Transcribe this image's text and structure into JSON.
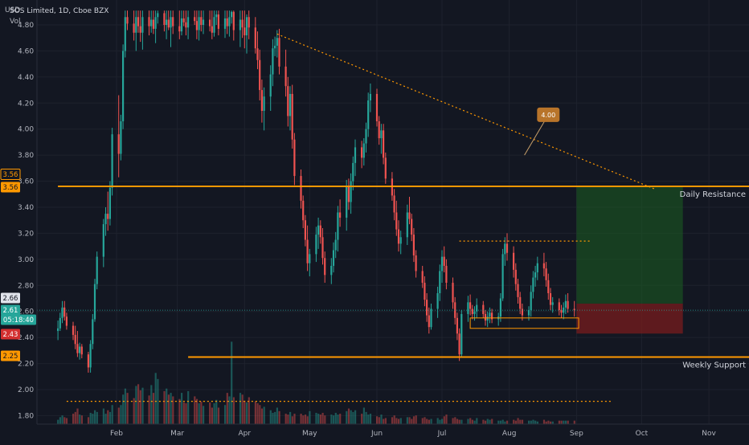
{
  "header": {
    "currency": "USD",
    "symbol_line": "SOS Limited, 1D, Cboe BZX",
    "volume_label": "Vol"
  },
  "colors": {
    "background": "#131722",
    "up": "#26a69a",
    "down": "#ef5350",
    "level_line": "#ff9800",
    "grid": "#1e222d",
    "text": "#d1d4dc"
  },
  "chart_data": {
    "type": "candlestick",
    "y_axis": {
      "range": [
        1.75,
        4.9
      ],
      "ticks": [
        "1.80",
        "2.00",
        "2.20",
        "2.40",
        "2.60",
        "2.80",
        "3.00",
        "3.20",
        "3.40",
        "3.60",
        "3.80",
        "4.00",
        "4.20",
        "4.40",
        "4.60",
        "4.80"
      ]
    },
    "x_axis": {
      "months": [
        "Feb",
        "Mar",
        "Apr",
        "May",
        "Jun",
        "Jul",
        "Aug",
        "Sep",
        "Oct",
        "Nov"
      ],
      "month_values": [
        30,
        58,
        89,
        119,
        150,
        180,
        211,
        242,
        272,
        303
      ]
    },
    "price_badges": [
      {
        "value": "3.56",
        "kind": "outline"
      },
      {
        "value": "3.56",
        "kind": "level"
      },
      {
        "value": "2.66",
        "kind": "neutral"
      },
      {
        "value": "2.61",
        "kind": "last"
      },
      {
        "value": "05:18:40",
        "kind": "countdown"
      },
      {
        "value": "2.43",
        "kind": "stop"
      },
      {
        "value": "2.25",
        "kind": "level"
      }
    ],
    "horizontal_levels": [
      {
        "price": 3.56,
        "label": "Daily Resistance",
        "from_day": 3
      },
      {
        "price": 2.25,
        "label": "Weekly Support",
        "from_day": 63
      }
    ],
    "dotted_levels": [
      {
        "price": 3.14,
        "from_day": 188,
        "to_day": 248
      },
      {
        "price": 1.91,
        "from_day": 7,
        "to_day": 258
      }
    ],
    "trendline": {
      "from": [
        104,
        4.73
      ],
      "to": [
        278,
        3.54
      ]
    },
    "callout": {
      "text": "4.00",
      "anchor": [
        218,
        3.8
      ],
      "box_center": [
        229,
        4.11
      ]
    },
    "position": {
      "from_day": 242,
      "to_day": 291,
      "entry": 2.66,
      "target": 3.56,
      "stop": 2.43
    },
    "consolidation_box": {
      "from_day": 193,
      "to_day": 243,
      "low": 2.47,
      "high": 2.55
    },
    "last_price": 2.61,
    "candles": [
      [
        3,
        2.45,
        2.53,
        2.38,
        2.47
      ],
      [
        4,
        2.47,
        2.59,
        2.45,
        2.55
      ],
      [
        5,
        2.55,
        2.68,
        2.51,
        2.63
      ],
      [
        6,
        2.63,
        2.68,
        2.53,
        2.56
      ],
      [
        7,
        2.56,
        2.59,
        2.46,
        2.49
      ],
      [
        10,
        2.49,
        2.52,
        2.38,
        2.42
      ],
      [
        11,
        2.42,
        2.49,
        2.31,
        2.35
      ],
      [
        12,
        2.35,
        2.45,
        2.25,
        2.28
      ],
      [
        13,
        2.28,
        2.36,
        2.23,
        2.33
      ],
      [
        14,
        2.33,
        2.35,
        2.24,
        2.27
      ],
      [
        17,
        2.27,
        2.29,
        2.13,
        2.17
      ],
      [
        18,
        2.17,
        2.38,
        2.13,
        2.35
      ],
      [
        19,
        2.35,
        2.58,
        2.31,
        2.54
      ],
      [
        20,
        2.54,
        2.85,
        2.52,
        2.81
      ],
      [
        21,
        2.81,
        3.06,
        2.77,
        3.02
      ],
      [
        24,
        3.02,
        3.31,
        2.94,
        3.27
      ],
      [
        25,
        3.27,
        3.4,
        3.18,
        3.35
      ],
      [
        26,
        3.35,
        3.52,
        3.22,
        3.31
      ],
      [
        27,
        3.31,
        3.6,
        3.26,
        3.55
      ],
      [
        28,
        3.55,
        4.01,
        3.49,
        3.96
      ],
      [
        31,
        3.96,
        4.26,
        3.63,
        3.81
      ],
      [
        32,
        3.81,
        4.11,
        3.76,
        4.06
      ],
      [
        33,
        4.06,
        4.65,
        4.0,
        4.6
      ],
      [
        34,
        4.6,
        4.91,
        4.55,
        4.86
      ],
      [
        35,
        4.86,
        4.91,
        4.76,
        4.81
      ],
      [
        38,
        4.81,
        4.91,
        4.68,
        4.74
      ],
      [
        39,
        4.74,
        4.91,
        4.6,
        4.86
      ],
      [
        40,
        4.86,
        4.91,
        4.74,
        4.79
      ],
      [
        41,
        4.79,
        4.91,
        4.67,
        4.74
      ],
      [
        42,
        4.74,
        4.91,
        4.61,
        4.86
      ],
      [
        45,
        4.86,
        4.91,
        4.72,
        4.79
      ],
      [
        46,
        4.79,
        4.91,
        4.74,
        4.84
      ],
      [
        47,
        4.84,
        4.91,
        4.73,
        4.77
      ],
      [
        48,
        4.77,
        4.91,
        4.66,
        4.86
      ],
      [
        49,
        4.86,
        4.91,
        4.81,
        4.89
      ],
      [
        52,
        4.89,
        4.91,
        4.75,
        4.8
      ],
      [
        53,
        4.8,
        4.91,
        4.69,
        4.84
      ],
      [
        54,
        4.84,
        4.91,
        4.76,
        4.78
      ],
      [
        55,
        4.78,
        4.91,
        4.63,
        4.86
      ],
      [
        56,
        4.86,
        4.91,
        4.73,
        4.79
      ],
      [
        59,
        4.79,
        4.91,
        4.69,
        4.75
      ],
      [
        60,
        4.75,
        4.91,
        4.72,
        4.85
      ],
      [
        61,
        4.85,
        4.91,
        4.79,
        4.82
      ],
      [
        62,
        4.82,
        4.91,
        4.72,
        4.78
      ],
      [
        63,
        4.78,
        4.91,
        4.69,
        4.86
      ],
      [
        66,
        4.86,
        4.91,
        4.8,
        4.83
      ],
      [
        67,
        4.83,
        4.91,
        4.69,
        4.76
      ],
      [
        68,
        4.76,
        4.91,
        4.68,
        4.86
      ],
      [
        69,
        4.86,
        4.91,
        4.75,
        4.8
      ],
      [
        70,
        4.8,
        4.91,
        4.73,
        4.84
      ],
      [
        73,
        4.84,
        4.91,
        4.75,
        4.79
      ],
      [
        74,
        4.79,
        4.91,
        4.69,
        4.74
      ],
      [
        75,
        4.74,
        4.91,
        4.71,
        4.86
      ],
      [
        76,
        4.86,
        4.91,
        4.8,
        4.88
      ],
      [
        77,
        4.88,
        4.91,
        4.72,
        4.77
      ],
      [
        80,
        4.77,
        4.91,
        4.7,
        4.85
      ],
      [
        81,
        4.85,
        4.91,
        4.73,
        4.79
      ],
      [
        82,
        4.79,
        4.91,
        4.71,
        4.86
      ],
      [
        83,
        4.86,
        4.91,
        4.81,
        4.9
      ],
      [
        84,
        4.9,
        4.91,
        4.68,
        4.76
      ],
      [
        87,
        4.76,
        4.91,
        4.63,
        4.84
      ],
      [
        88,
        4.84,
        4.91,
        4.7,
        4.78
      ],
      [
        89,
        4.78,
        4.91,
        4.62,
        4.72
      ],
      [
        90,
        4.72,
        4.88,
        4.58,
        4.86
      ],
      [
        91,
        4.86,
        4.91,
        4.69,
        4.78
      ],
      [
        94,
        4.78,
        4.86,
        4.58,
        4.62
      ],
      [
        95,
        4.62,
        4.75,
        4.46,
        4.53
      ],
      [
        96,
        4.53,
        4.61,
        4.22,
        4.3
      ],
      [
        97,
        4.3,
        4.38,
        4.05,
        4.14
      ],
      [
        98,
        4.14,
        4.32,
        3.99,
        4.25
      ],
      [
        101,
        4.25,
        4.49,
        4.14,
        4.42
      ],
      [
        102,
        4.42,
        4.69,
        4.33,
        4.62
      ],
      [
        103,
        4.62,
        4.71,
        4.56,
        4.64
      ],
      [
        104,
        4.64,
        4.76,
        4.55,
        4.7
      ],
      [
        105,
        4.7,
        4.77,
        4.42,
        4.48
      ],
      [
        108,
        4.48,
        4.61,
        4.25,
        4.33
      ],
      [
        109,
        4.33,
        4.4,
        4.02,
        4.1
      ],
      [
        110,
        4.1,
        4.33,
        3.99,
        4.27
      ],
      [
        111,
        4.27,
        4.34,
        3.85,
        3.92
      ],
      [
        112,
        3.92,
        3.97,
        3.57,
        3.64
      ],
      [
        115,
        3.64,
        3.69,
        3.39,
        3.45
      ],
      [
        116,
        3.45,
        3.49,
        3.24,
        3.3
      ],
      [
        117,
        3.3,
        3.34,
        3.1,
        3.15
      ],
      [
        118,
        3.15,
        3.26,
        2.91,
        2.97
      ],
      [
        119,
        2.97,
        3.08,
        2.87,
        3.04
      ],
      [
        122,
        3.04,
        3.25,
        2.98,
        3.19
      ],
      [
        123,
        3.19,
        3.32,
        3.08,
        3.26
      ],
      [
        124,
        3.26,
        3.3,
        3.12,
        3.17
      ],
      [
        125,
        3.17,
        3.24,
        2.96,
        3.01
      ],
      [
        126,
        3.01,
        3.06,
        2.82,
        2.88
      ],
      [
        129,
        2.88,
        3.01,
        2.81,
        2.95
      ],
      [
        130,
        2.95,
        3.13,
        2.9,
        3.07
      ],
      [
        131,
        3.07,
        3.21,
        3.01,
        3.15
      ],
      [
        132,
        3.15,
        3.41,
        3.06,
        3.36
      ],
      [
        133,
        3.36,
        3.46,
        3.25,
        3.32
      ],
      [
        136,
        3.32,
        3.61,
        3.22,
        3.56
      ],
      [
        137,
        3.56,
        3.62,
        3.38,
        3.44
      ],
      [
        138,
        3.44,
        3.66,
        3.35,
        3.6
      ],
      [
        139,
        3.6,
        3.79,
        3.53,
        3.74
      ],
      [
        140,
        3.74,
        3.92,
        3.64,
        3.86
      ],
      [
        143,
        3.86,
        3.91,
        3.7,
        3.78
      ],
      [
        144,
        3.78,
        3.93,
        3.72,
        3.89
      ],
      [
        145,
        3.89,
        4.05,
        3.82,
        4.0
      ],
      [
        146,
        4.0,
        4.28,
        3.94,
        4.22
      ],
      [
        147,
        4.22,
        4.35,
        4.13,
        4.27
      ],
      [
        150,
        4.27,
        4.31,
        4.02,
        4.06
      ],
      [
        151,
        4.06,
        4.1,
        3.88,
        3.93
      ],
      [
        152,
        3.93,
        4.04,
        3.81,
        3.99
      ],
      [
        153,
        3.99,
        4.04,
        3.73,
        3.78
      ],
      [
        154,
        3.78,
        3.82,
        3.58,
        3.62
      ],
      [
        157,
        3.62,
        3.67,
        3.45,
        3.49
      ],
      [
        158,
        3.49,
        3.54,
        3.3,
        3.36
      ],
      [
        159,
        3.36,
        3.45,
        3.18,
        3.23
      ],
      [
        160,
        3.23,
        3.3,
        3.06,
        3.12
      ],
      [
        161,
        3.12,
        3.22,
        3.04,
        3.17
      ],
      [
        164,
        3.17,
        3.42,
        3.11,
        3.36
      ],
      [
        165,
        3.36,
        3.48,
        3.27,
        3.31
      ],
      [
        166,
        3.31,
        3.35,
        3.14,
        3.19
      ],
      [
        167,
        3.19,
        3.24,
        2.98,
        3.03
      ],
      [
        168,
        3.03,
        3.07,
        2.86,
        2.91
      ],
      [
        171,
        2.91,
        2.95,
        2.78,
        2.82
      ],
      [
        172,
        2.82,
        2.87,
        2.64,
        2.69
      ],
      [
        173,
        2.69,
        2.74,
        2.52,
        2.57
      ],
      [
        174,
        2.57,
        2.63,
        2.43,
        2.48
      ],
      [
        175,
        2.48,
        2.66,
        2.46,
        2.62
      ],
      [
        178,
        2.62,
        2.79,
        2.55,
        2.74
      ],
      [
        179,
        2.74,
        2.96,
        2.68,
        2.91
      ],
      [
        180,
        2.91,
        3.07,
        2.82,
        3.02
      ],
      [
        181,
        3.02,
        3.1,
        2.9,
        2.95
      ],
      [
        182,
        2.95,
        3.0,
        2.77,
        2.82
      ],
      [
        185,
        2.82,
        2.86,
        2.62,
        2.67
      ],
      [
        186,
        2.67,
        2.71,
        2.5,
        2.55
      ],
      [
        187,
        2.55,
        2.59,
        2.38,
        2.43
      ],
      [
        188,
        2.43,
        2.47,
        2.22,
        2.27
      ],
      [
        189,
        2.27,
        2.61,
        2.25,
        2.58
      ],
      [
        192,
        2.58,
        2.72,
        2.52,
        2.67
      ],
      [
        193,
        2.67,
        2.73,
        2.57,
        2.62
      ],
      [
        194,
        2.62,
        2.65,
        2.54,
        2.58
      ],
      [
        195,
        2.58,
        2.64,
        2.53,
        2.6
      ],
      [
        196,
        2.6,
        2.7,
        2.55,
        2.65
      ],
      [
        199,
        2.65,
        2.68,
        2.55,
        2.58
      ],
      [
        200,
        2.58,
        2.61,
        2.49,
        2.53
      ],
      [
        201,
        2.53,
        2.6,
        2.48,
        2.56
      ],
      [
        202,
        2.56,
        2.63,
        2.51,
        2.59
      ],
      [
        203,
        2.59,
        2.62,
        2.51,
        2.54
      ],
      [
        206,
        2.54,
        2.59,
        2.49,
        2.56
      ],
      [
        207,
        2.56,
        2.74,
        2.52,
        2.7
      ],
      [
        208,
        2.7,
        3.08,
        2.68,
        3.04
      ],
      [
        209,
        3.04,
        3.17,
        2.95,
        3.12
      ],
      [
        210,
        3.12,
        3.2,
        2.99,
        3.05
      ],
      [
        213,
        3.05,
        3.1,
        2.86,
        2.92
      ],
      [
        214,
        2.92,
        2.97,
        2.76,
        2.81
      ],
      [
        215,
        2.81,
        2.85,
        2.66,
        2.71
      ],
      [
        216,
        2.71,
        2.75,
        2.58,
        2.62
      ],
      [
        217,
        2.62,
        2.66,
        2.53,
        2.57
      ],
      [
        220,
        2.57,
        2.64,
        2.53,
        2.61
      ],
      [
        221,
        2.61,
        2.8,
        2.56,
        2.75
      ],
      [
        222,
        2.75,
        2.91,
        2.7,
        2.86
      ],
      [
        223,
        2.86,
        2.95,
        2.79,
        2.9
      ],
      [
        224,
        2.9,
        3.02,
        2.84,
        2.97
      ],
      [
        227,
        2.97,
        3.05,
        2.87,
        2.93
      ],
      [
        228,
        2.93,
        2.98,
        2.79,
        2.84
      ],
      [
        229,
        2.84,
        2.89,
        2.69,
        2.74
      ],
      [
        230,
        2.74,
        2.78,
        2.61,
        2.65
      ],
      [
        231,
        2.65,
        2.71,
        2.59,
        2.67
      ],
      [
        234,
        2.67,
        2.7,
        2.57,
        2.61
      ],
      [
        235,
        2.61,
        2.65,
        2.55,
        2.59
      ],
      [
        236,
        2.59,
        2.67,
        2.54,
        2.63
      ],
      [
        237,
        2.63,
        2.73,
        2.58,
        2.68
      ],
      [
        238,
        2.68,
        2.74,
        2.59,
        2.62
      ],
      [
        241,
        2.62,
        2.68,
        2.56,
        2.61
      ]
    ],
    "volume": {
      "max": 1.0,
      "values": [
        0.05,
        0.08,
        0.1,
        0.08,
        0.07,
        0.12,
        0.14,
        0.18,
        0.11,
        0.1,
        0.08,
        0.13,
        0.12,
        0.16,
        0.14,
        0.18,
        0.12,
        0.16,
        0.14,
        0.22,
        0.19,
        0.22,
        0.34,
        0.41,
        0.36,
        0.3,
        0.44,
        0.46,
        0.39,
        0.42,
        0.33,
        0.45,
        0.36,
        0.59,
        0.52,
        0.38,
        0.41,
        0.34,
        0.36,
        0.32,
        0.29,
        0.36,
        0.25,
        0.24,
        0.38,
        0.32,
        0.29,
        0.24,
        0.26,
        0.21,
        0.25,
        0.19,
        0.24,
        0.28,
        0.19,
        0.22,
        0.36,
        0.32,
        0.95,
        0.31,
        0.36,
        0.34,
        0.27,
        0.25,
        0.31,
        0.26,
        0.24,
        0.22,
        0.18,
        0.2,
        0.16,
        0.13,
        0.14,
        0.19,
        0.15,
        0.12,
        0.11,
        0.14,
        0.09,
        0.12,
        0.12,
        0.1,
        0.11,
        0.09,
        0.15,
        0.13,
        0.12,
        0.11,
        0.13,
        0.1,
        0.11,
        0.1,
        0.13,
        0.11,
        0.12,
        0.15,
        0.18,
        0.16,
        0.14,
        0.16,
        0.12,
        0.19,
        0.14,
        0.11,
        0.12,
        0.09,
        0.08,
        0.11,
        0.06,
        0.07,
        0.08,
        0.1,
        0.07,
        0.06,
        0.07,
        0.08,
        0.08,
        0.06,
        0.09,
        0.1,
        0.07,
        0.08,
        0.06,
        0.05,
        0.06,
        0.07,
        0.05,
        0.06,
        0.09,
        0.11,
        0.07,
        0.08,
        0.06,
        0.05,
        0.05,
        0.06,
        0.07,
        0.05,
        0.04,
        0.07,
        0.05,
        0.04,
        0.06,
        0.05,
        0.06,
        0.04,
        0.04,
        0.05,
        0.03,
        0.04,
        0.05,
        0.04,
        0.07,
        0.05,
        0.05,
        0.04,
        0.04,
        0.05,
        0.04,
        0.03,
        0.05,
        0.03,
        0.04,
        0.03,
        0.03
      ]
    }
  }
}
